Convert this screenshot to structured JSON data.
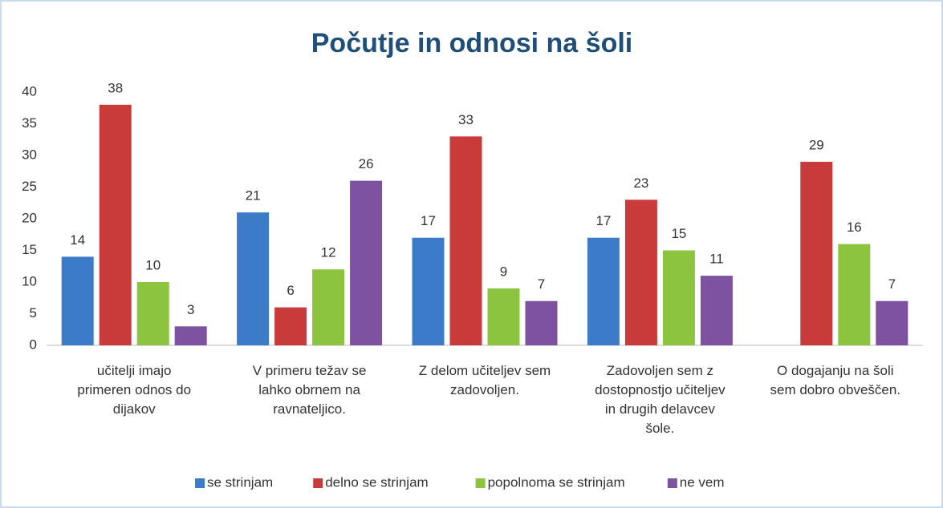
{
  "chart_data": {
    "type": "bar",
    "title": "Počutje in odnosi na šoli",
    "categories": [
      "učitelji imajo\nprimeren odnos do\ndijakov",
      "V primeru težav se\nlahko obrnem na\nravnateljico.",
      "Z delom učiteljev sem\nzadovoljen.",
      "Zadovoljen sem z\ndostopnostjo učiteljev\nin drugih delavcev\nšole.",
      "O dogajanju na šoli\nsem dobro obveščen."
    ],
    "series": [
      {
        "name": "se strinjam",
        "color": "#3b7bc8",
        "values": [
          14,
          21,
          17,
          17,
          null
        ]
      },
      {
        "name": "delno se strinjam",
        "color": "#c93a3a",
        "values": [
          38,
          6,
          33,
          23,
          29
        ]
      },
      {
        "name": "popolnoma se strinjam",
        "color": "#8cc43f",
        "values": [
          10,
          12,
          9,
          15,
          16
        ]
      },
      {
        "name": "ne vem",
        "color": "#7d52a0",
        "values": [
          3,
          26,
          7,
          11,
          7
        ]
      }
    ],
    "ylim": [
      0,
      40
    ],
    "yticks": [
      0,
      5,
      10,
      15,
      20,
      25,
      30,
      35,
      40
    ],
    "grid": false,
    "legend": "bottom"
  }
}
